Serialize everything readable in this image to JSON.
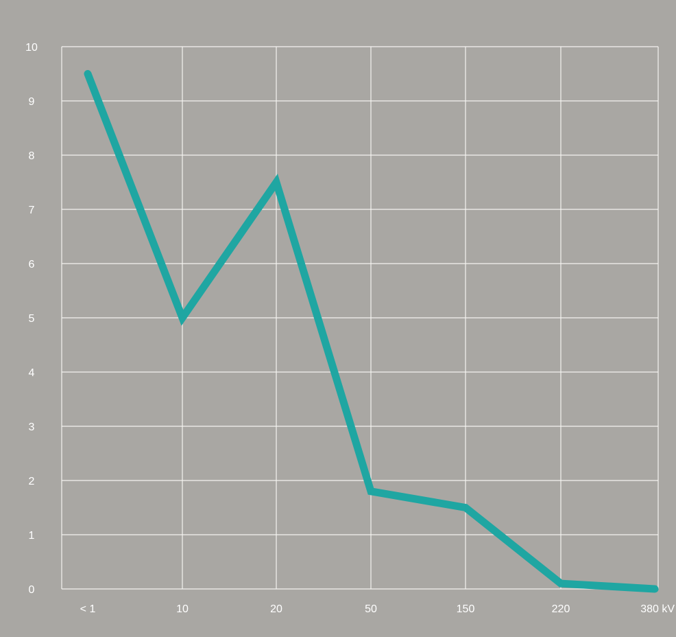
{
  "chart_data": {
    "type": "line",
    "categories": [
      "< 1",
      "10",
      "20",
      "50",
      "150",
      "220",
      "380 kV"
    ],
    "series": [
      {
        "values": [
          9.5,
          5.0,
          7.5,
          1.8,
          1.5,
          0.1,
          0.0
        ]
      }
    ],
    "ylim": [
      0,
      10
    ],
    "yticks": [
      "0",
      "1",
      "2",
      "3",
      "4",
      "5",
      "6",
      "7",
      "8",
      "9",
      "10"
    ],
    "title": "",
    "xlabel": "",
    "ylabel": "",
    "grid": true,
    "legend": "none"
  },
  "colors": {
    "background": "#a9a7a3",
    "grid": "#f4f3f0",
    "line": "#1fa6a2",
    "text": "#ffffff"
  }
}
